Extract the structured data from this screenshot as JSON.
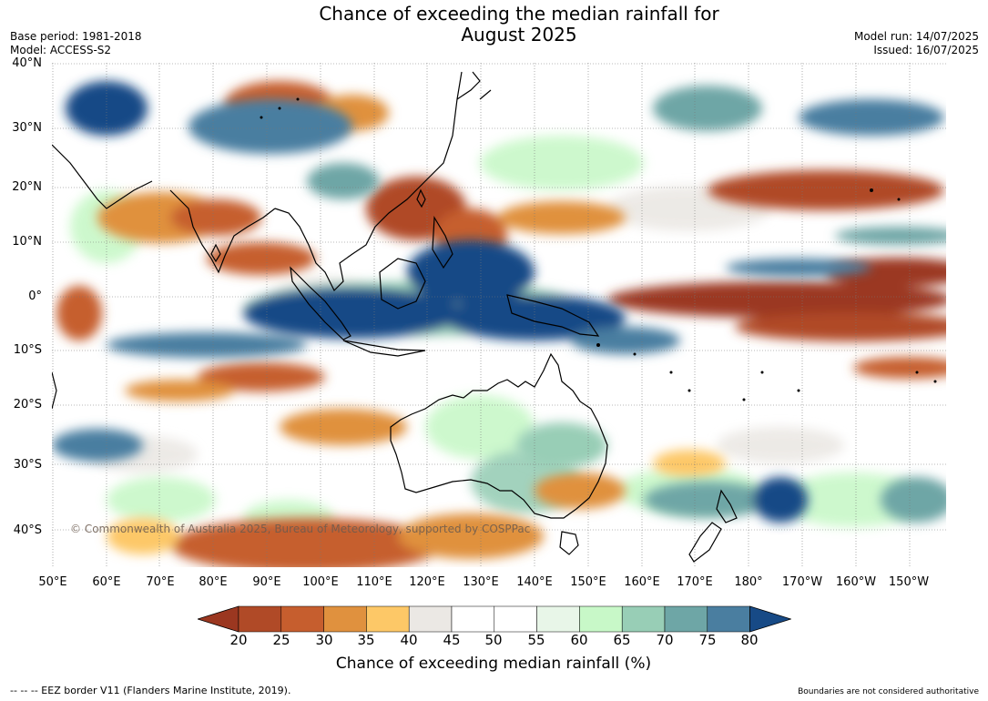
{
  "header": {
    "title_line1": "Chance of exceeding the median rainfall for",
    "title_line2": "August 2025",
    "base_period": "Base period: 1981-2018",
    "model": "Model: ACCESS-S2",
    "model_run": "Model run: 14/07/2025",
    "issued": "Issued: 16/07/2025"
  },
  "map": {
    "lat_labels": [
      "40°N",
      "30°N",
      "20°N",
      "10°N",
      "0°",
      "10°S",
      "20°S",
      "30°S",
      "40°S"
    ],
    "lon_labels": [
      "50°E",
      "60°E",
      "70°E",
      "80°E",
      "90°E",
      "100°E",
      "110°E",
      "120°E",
      "130°E",
      "140°E",
      "150°E",
      "160°E",
      "170°E",
      "180°",
      "170°W",
      "160°W",
      "150°W"
    ],
    "copyright": "© Commonwealth of Australia 2025, Bureau of Meteorology, supported by COSPPac",
    "land_color": "#000000",
    "ocean_base_color": "#ffffff"
  },
  "colorbar": {
    "ticks": [
      "20",
      "25",
      "30",
      "35",
      "40",
      "45",
      "50",
      "55",
      "60",
      "65",
      "70",
      "75",
      "80"
    ],
    "colors": [
      "#9b3720",
      "#b04a27",
      "#c65e2e",
      "#e0913e",
      "#fdc867",
      "#ebe8e4",
      "#ffffff",
      "#ffffff",
      "#e8f6e8",
      "#c8f8c8",
      "#98ceb6",
      "#6ea6a6",
      "#4a7ea0",
      "#174a86"
    ],
    "label": "Chance of exceeding median rainfall (%)"
  },
  "footer": {
    "eez": "--  --  -- EEZ border V11 (Flanders Marine Institute, 2019).",
    "disclaimer": "Boundaries are not considered authoritative"
  }
}
